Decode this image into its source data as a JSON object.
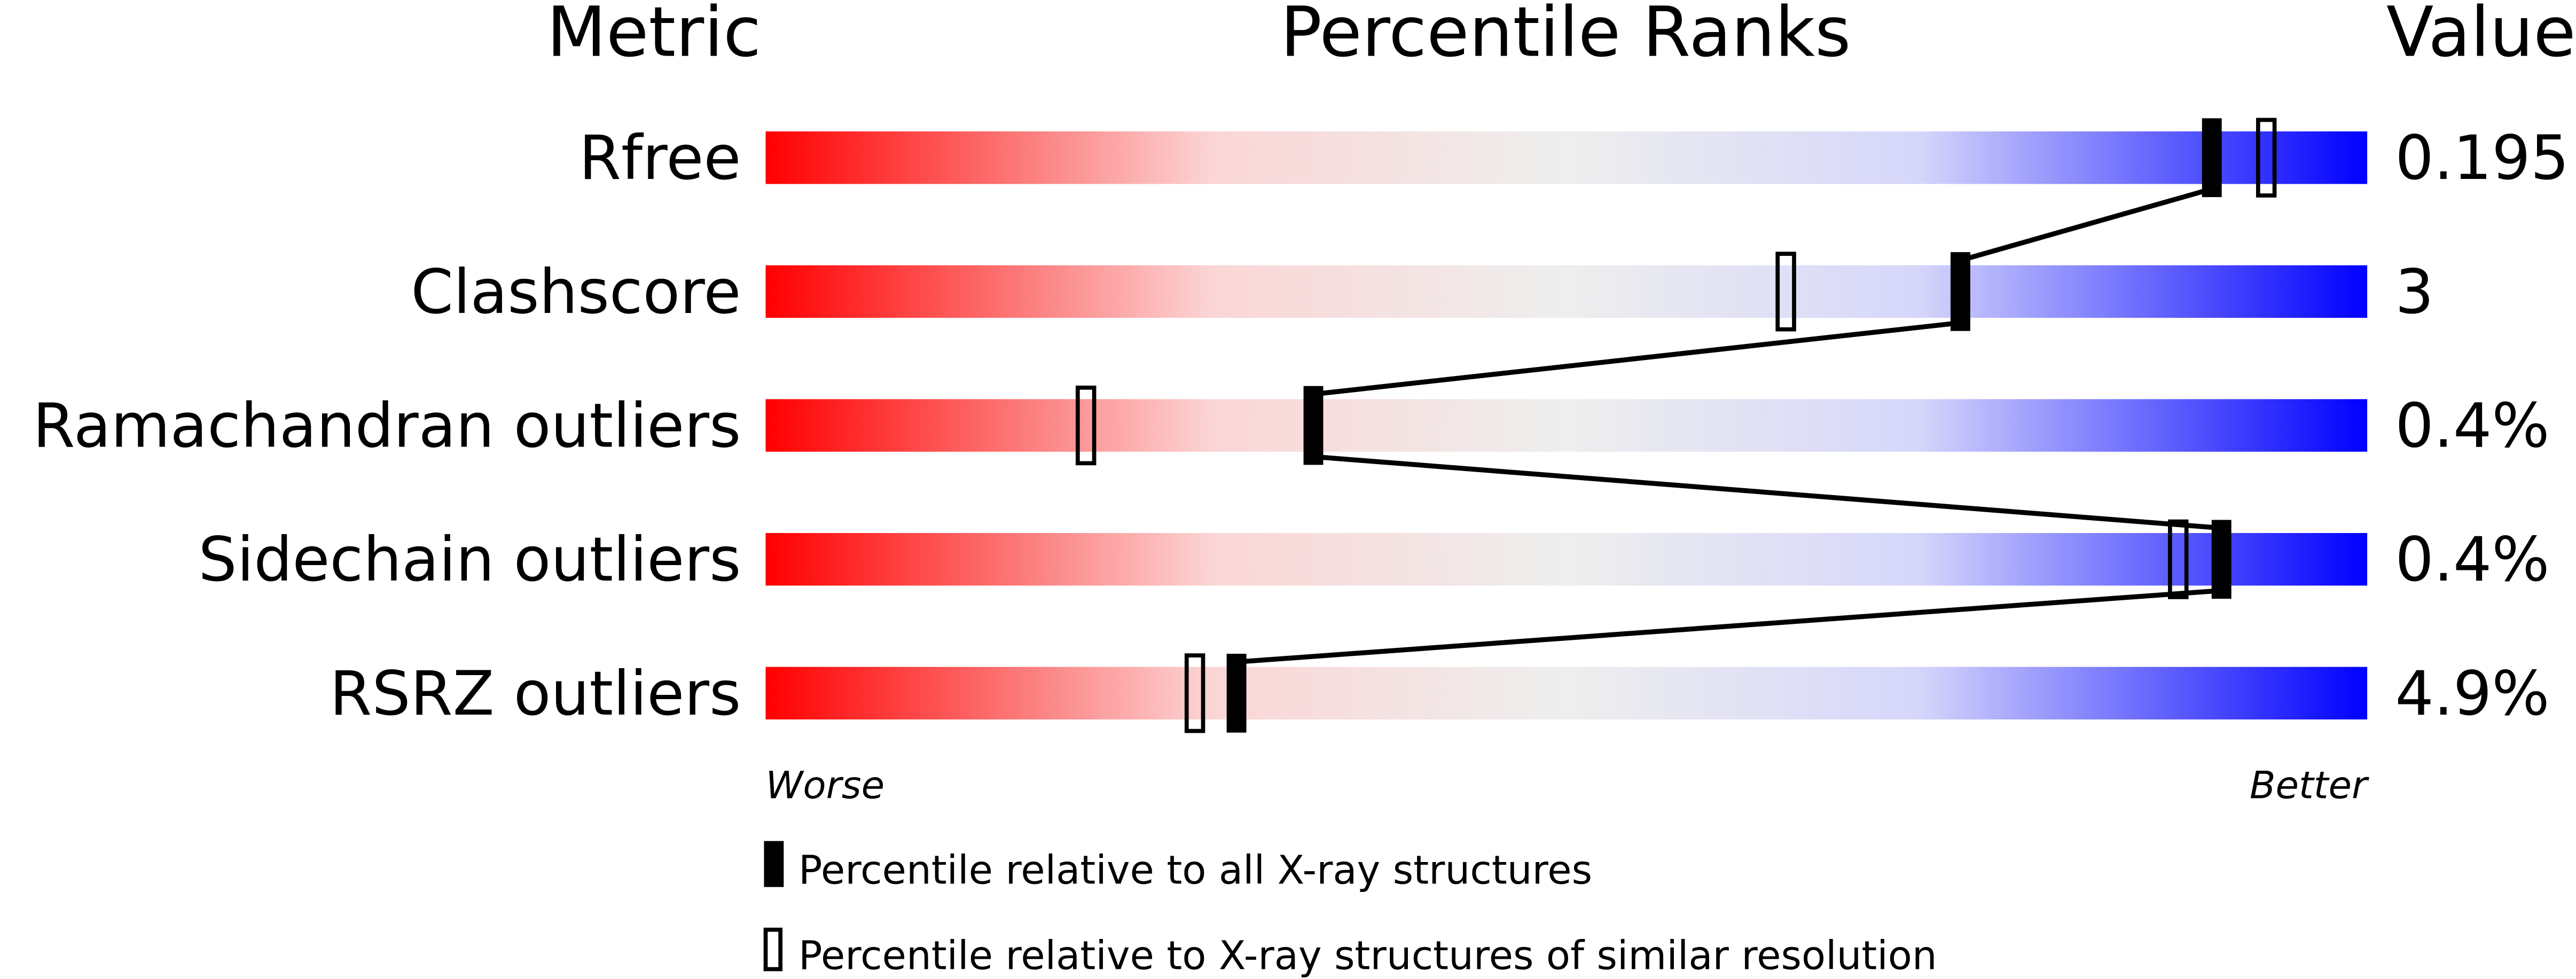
{
  "chart_data": {
    "type": "percentile-slider",
    "headers": {
      "metric": "Metric",
      "ranks": "Percentile Ranks",
      "value": "Value"
    },
    "xlim": [
      0,
      100
    ],
    "axis_labels": {
      "left": "Worse",
      "right": "Better"
    },
    "gradient_colors": [
      "#ff0000",
      "#fbdcdc",
      "#eeeeee",
      "#dcdcfb",
      "#0000ff"
    ],
    "metrics": [
      {
        "name": "Rfree",
        "value": "0.195",
        "percentile_all": 90.3,
        "percentile_similar": 93.7
      },
      {
        "name": "Clashscore",
        "value": "3",
        "percentile_all": 74.6,
        "percentile_similar": 63.7
      },
      {
        "name": "Ramachandran outliers",
        "value": "0.4%",
        "percentile_all": 34.2,
        "percentile_similar": 20.0
      },
      {
        "name": "Sidechain outliers",
        "value": "0.4%",
        "percentile_all": 90.9,
        "percentile_similar": 88.2
      },
      {
        "name": "RSRZ outliers",
        "value": "4.9%",
        "percentile_all": 29.4,
        "percentile_similar": 26.8
      }
    ],
    "legend": [
      {
        "marker": "filled",
        "label": "Percentile relative to all X-ray structures"
      },
      {
        "marker": "open",
        "label": "Percentile relative to X-ray structures of similar resolution"
      }
    ]
  }
}
